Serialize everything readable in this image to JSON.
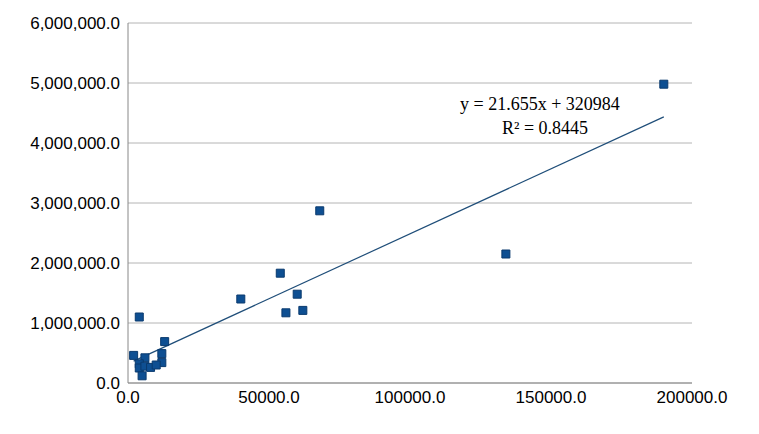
{
  "chart_data": {
    "type": "scatter",
    "x": [
      190000,
      134000,
      68000,
      54000,
      40000,
      60000,
      56000,
      62000,
      4000,
      13000,
      12000,
      12000,
      2000,
      6000,
      4000,
      4000,
      6000,
      8000,
      5000,
      10000
    ],
    "values": [
      4980000,
      2150000,
      2870000,
      1830000,
      1400000,
      1480000,
      1170000,
      1210000,
      1100000,
      690000,
      490000,
      340000,
      460000,
      420000,
      320000,
      250000,
      280000,
      260000,
      120000,
      300000
    ],
    "color": "#0e4f92",
    "marker": "square",
    "xlim": [
      0,
      200000
    ],
    "ylim": [
      0,
      6000000
    ],
    "xticks": [
      {
        "value": 0,
        "label": "0.0"
      },
      {
        "value": 50000,
        "label": "50000.0"
      },
      {
        "value": 100000,
        "label": "100000.0"
      },
      {
        "value": 150000,
        "label": "150000.0"
      },
      {
        "value": 200000,
        "label": "200000.0"
      }
    ],
    "yticks": [
      {
        "value": 0,
        "label": "0.0"
      },
      {
        "value": 1000000,
        "label": "1,000,000.0"
      },
      {
        "value": 2000000,
        "label": "2,000,000.0"
      },
      {
        "value": 3000000,
        "label": "3,000,000.0"
      },
      {
        "value": 4000000,
        "label": "4,000,000.0"
      },
      {
        "value": 5000000,
        "label": "5,000,000.0"
      },
      {
        "value": 6000000,
        "label": "6,000,000.0"
      }
    ],
    "grid": true,
    "trendline": {
      "x": [
        2000,
        190000
      ],
      "values": [
        364294,
        4435434
      ],
      "color": "#1f4e79"
    },
    "annotations": [
      "y = 21.655x + 320984",
      "R² = 0.8445"
    ]
  }
}
